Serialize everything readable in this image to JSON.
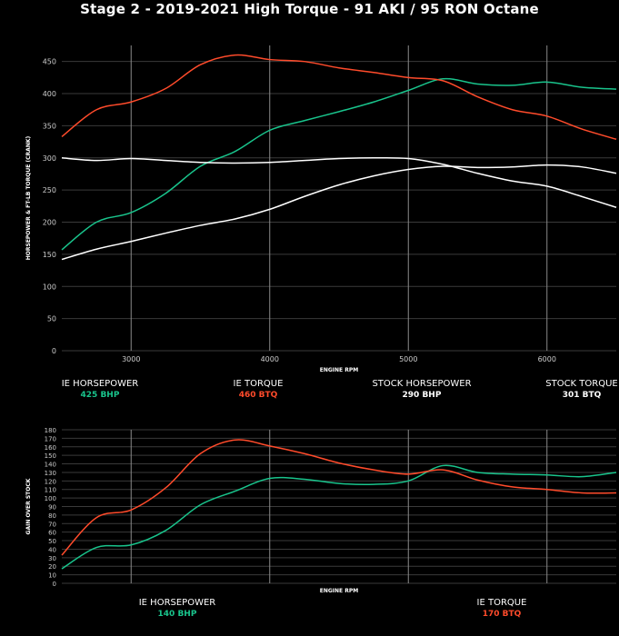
{
  "title": "Stage 2 - 2019-2021 High Torque - 91 AKI / 95 RON Octane",
  "colors": {
    "background": "#000000",
    "hp": "#19c48c",
    "torque": "#ff4b2b",
    "stock": "#ffffff",
    "grid": "#3a3a3a",
    "vline": "#8a8a8a"
  },
  "legend_top": {
    "ie_hp_label": "IE HORSEPOWER",
    "ie_hp_value": "425 BHP",
    "ie_tq_label": "IE TORQUE",
    "ie_tq_value": "460 BTQ",
    "stock_hp_label": "STOCK HORSEPOWER",
    "stock_hp_value": "290 BHP",
    "stock_tq_label": "STOCK TORQUE",
    "stock_tq_value": "301 BTQ"
  },
  "legend_bottom": {
    "ie_hp_label": "IE HORSEPOWER",
    "ie_hp_value": "140 BHP",
    "ie_tq_label": "IE TORQUE",
    "ie_tq_value": "170 BTQ"
  },
  "chart_data": [
    {
      "type": "line",
      "title": "Stage 2 - 2019-2021 High Torque - 91 AKI / 95 RON Octane",
      "xlabel": "ENGINE RPM",
      "ylabel": "HORSEPOWER & FT-LB TORQUE (CRANK)",
      "xlim": [
        2500,
        6500
      ],
      "ylim": [
        0,
        475
      ],
      "xticks": [
        3000,
        4000,
        5000,
        6000
      ],
      "yticks": [
        0,
        50,
        100,
        150,
        200,
        250,
        300,
        350,
        400,
        450
      ],
      "x": [
        2500,
        2750,
        3000,
        3250,
        3500,
        3750,
        4000,
        4250,
        4500,
        4750,
        5000,
        5250,
        5500,
        5750,
        6000,
        6250,
        6500
      ],
      "series": [
        {
          "name": "IE Horsepower",
          "color": "#19c48c",
          "values": [
            157,
            200,
            215,
            245,
            287,
            310,
            343,
            358,
            372,
            387,
            405,
            423,
            415,
            413,
            418,
            410,
            407
          ]
        },
        {
          "name": "IE Torque",
          "color": "#ff4b2b",
          "values": [
            333,
            375,
            387,
            408,
            445,
            460,
            453,
            450,
            440,
            433,
            425,
            420,
            395,
            375,
            365,
            345,
            329
          ]
        },
        {
          "name": "Stock Horsepower",
          "color": "#ffffff",
          "values": [
            142,
            158,
            170,
            183,
            195,
            205,
            220,
            240,
            258,
            272,
            282,
            287,
            285,
            286,
            289,
            286,
            276
          ]
        },
        {
          "name": "Stock Torque",
          "color": "#ffffff",
          "values": [
            300,
            296,
            299,
            296,
            293,
            292,
            293,
            296,
            299,
            300,
            299,
            290,
            276,
            264,
            256,
            240,
            223
          ]
        }
      ]
    },
    {
      "type": "line",
      "title": "",
      "xlabel": "ENGINE RPM",
      "ylabel": "GAIN OVER STOCK",
      "xlim": [
        2500,
        6500
      ],
      "ylim": [
        0,
        180
      ],
      "xticks": [
        3000,
        4000,
        5000,
        6000
      ],
      "yticks": [
        0,
        10,
        20,
        30,
        40,
        50,
        60,
        70,
        80,
        90,
        100,
        110,
        120,
        130,
        140,
        150,
        160,
        170,
        180
      ],
      "x": [
        2500,
        2750,
        3000,
        3250,
        3500,
        3750,
        4000,
        4250,
        4500,
        4750,
        5000,
        5250,
        5500,
        5750,
        6000,
        6250,
        6500
      ],
      "series": [
        {
          "name": "IE Horsepower Gain",
          "color": "#19c48c",
          "values": [
            17,
            42,
            45,
            62,
            92,
            108,
            123,
            122,
            117,
            116,
            120,
            138,
            130,
            128,
            127,
            125,
            130
          ]
        },
        {
          "name": "IE Torque Gain",
          "color": "#ff4b2b",
          "values": [
            33,
            77,
            86,
            112,
            152,
            168,
            161,
            152,
            141,
            133,
            128,
            133,
            121,
            113,
            110,
            106,
            106
          ]
        }
      ]
    }
  ]
}
